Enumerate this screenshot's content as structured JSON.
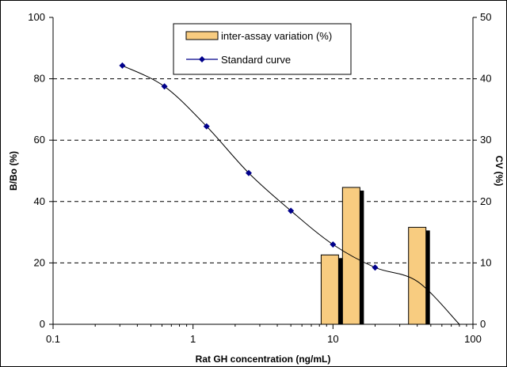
{
  "chart_data": {
    "type": "bar+line",
    "x_scale": "log",
    "xlim": [
      0.1,
      100
    ],
    "x_ticks": [
      0.1,
      1,
      10,
      100
    ],
    "x_tick_labels": [
      "0.1",
      "1",
      "10",
      "100"
    ],
    "xlabel": "Rat GH concentration (ng/mL)",
    "ylabel": "B/Bo (%)",
    "ylim": [
      0,
      100
    ],
    "y_ticks": [
      0,
      20,
      40,
      60,
      80,
      100
    ],
    "y_tick_labels": [
      "0",
      "20",
      "40",
      "60",
      "80",
      "100"
    ],
    "y2label": "CV (%)",
    "y2lim": [
      0,
      50
    ],
    "y2_ticks": [
      0,
      10,
      20,
      30,
      40,
      50
    ],
    "y2_tick_labels": [
      "0",
      "10",
      "20",
      "30",
      "40",
      "50"
    ],
    "grid": "horizontal dashed",
    "legend_position": "top-center",
    "series": [
      {
        "name": "inter-assay variation (%)",
        "kind": "bar",
        "axis": "right",
        "color": "#f8cc80",
        "x": [
          9.5,
          13.5,
          40
        ],
        "values": [
          11.3,
          22.3,
          15.8
        ]
      },
      {
        "name": "Standard curve",
        "kind": "line",
        "axis": "left",
        "color": "#00008b",
        "x": [
          0.3125,
          0.625,
          1.25,
          2.5,
          5,
          10,
          20
        ],
        "values": [
          84.3,
          77.5,
          64.5,
          49.3,
          37.0,
          26.0,
          18.5
        ]
      }
    ],
    "line_extension": {
      "x": [
        40,
        80
      ],
      "values": [
        14.0,
        0
      ]
    }
  }
}
